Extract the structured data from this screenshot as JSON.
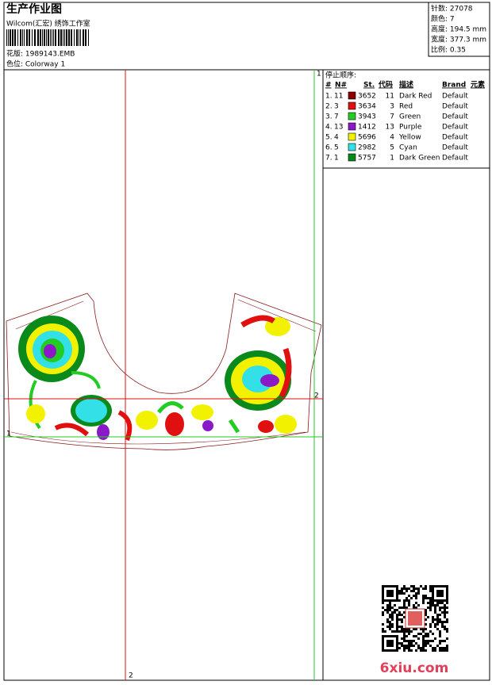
{
  "header": {
    "title": "生产作业图",
    "company": "Wilcom(汇宏) 绣饰工作室",
    "design": "花版: 1989143.EMB",
    "colorway": "色位: Colorway 1"
  },
  "info": [
    "针数: 27078",
    "颜色: 7",
    "高度: 194.5 mm",
    "宽度: 377.3 mm",
    "比例: 0.35"
  ],
  "stop_sequence": {
    "title": "停止顺序:",
    "columns": [
      "#",
      "N#",
      "St.",
      "代码",
      "描述",
      "Brand",
      "元素"
    ],
    "rows": [
      {
        "index": "1.",
        "needle": "11",
        "color": "#8b0000",
        "code": "3652",
        "num": "11",
        "desc": "Dark Red",
        "brand": "Default"
      },
      {
        "index": "2.",
        "needle": "3",
        "color": "#e01010",
        "code": "3634",
        "num": "3",
        "desc": "Red",
        "brand": "Default"
      },
      {
        "index": "3.",
        "needle": "7",
        "color": "#22cc22",
        "code": "3943",
        "num": "7",
        "desc": "Green",
        "brand": "Default"
      },
      {
        "index": "4.",
        "needle": "13",
        "color": "#8a1ac8",
        "code": "1412",
        "num": "13",
        "desc": "Purple",
        "brand": "Default"
      },
      {
        "index": "5.",
        "needle": "4",
        "color": "#f2f200",
        "code": "5696",
        "num": "4",
        "desc": "Yellow",
        "brand": "Default"
      },
      {
        "index": "6.",
        "needle": "5",
        "color": "#33e0e8",
        "code": "2982",
        "num": "5",
        "desc": "Cyan",
        "brand": "Default"
      },
      {
        "index": "7.",
        "needle": "1",
        "color": "#0a8a1a",
        "code": "5757",
        "num": "1",
        "desc": "Dark Green",
        "brand": "Default"
      }
    ]
  },
  "guides": {
    "v_green": "1",
    "h_green": "1",
    "h_red": "2",
    "v_red": "2"
  },
  "watermark": "6xiu.com"
}
